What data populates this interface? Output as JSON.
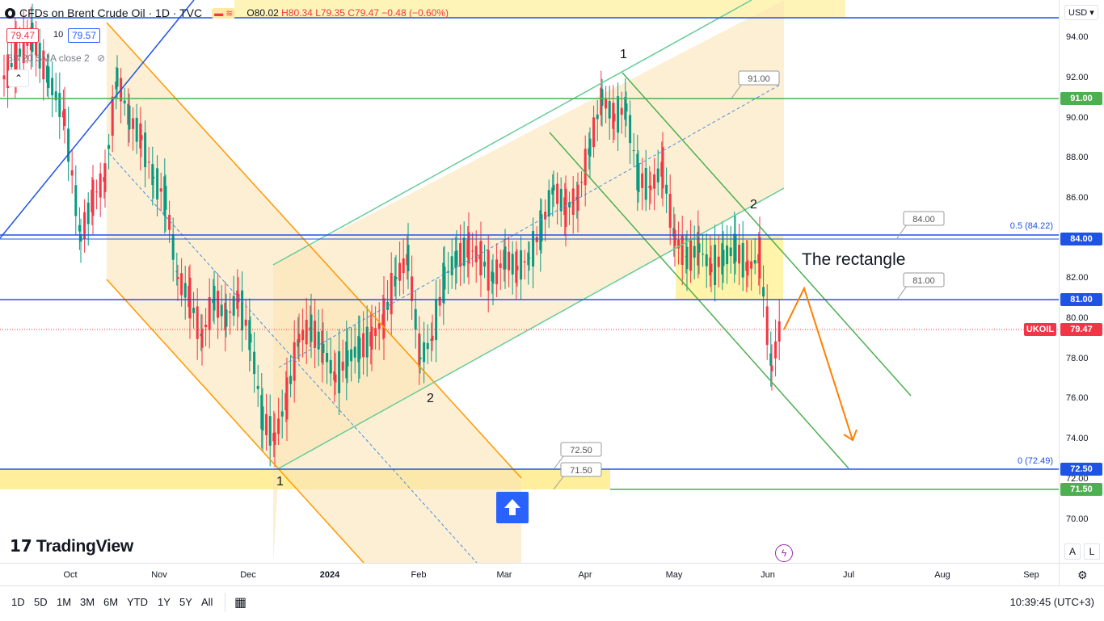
{
  "header": {
    "symbol_title": "CFDs on Brent Crude Oil · 1D · TVC",
    "ohlc": {
      "o": "O80.02",
      "h": "H80.34",
      "l": "L79.35",
      "c": "C79.47",
      "chg": "−0.48 (−0.60%)"
    },
    "sell_price": "79.47",
    "spread": "10",
    "buy_price": "79.57",
    "indicator_label": "BB 20 SMA close 2",
    "collapse_icon": "chevron-up-icon",
    "hide_icon": "eye-off-icon"
  },
  "currency": "USD",
  "price_axis": {
    "ticks": [
      "94.00",
      "92.00",
      "90.00",
      "88.00",
      "86.00",
      "84.00",
      "82.00",
      "80.00",
      "78.00",
      "76.00",
      "74.00",
      "72.00",
      "70.00"
    ],
    "labels": [
      {
        "text": "91.00",
        "color": "#4caf50"
      },
      {
        "text": "84.00",
        "color": "#1e53e5"
      },
      {
        "text": "81.00",
        "color": "#1e53e5"
      },
      {
        "text": "UKOIL",
        "color": "#f23645"
      },
      {
        "text": "79.47",
        "color": "#f23645"
      },
      {
        "text": "72.50",
        "color": "#1e53e5"
      },
      {
        "text": "71.50",
        "color": "#4caf50"
      }
    ]
  },
  "time_axis": {
    "labels": [
      "Oct",
      "Nov",
      "Dec",
      "2024",
      "Feb",
      "Mar",
      "Apr",
      "May",
      "Jun",
      "Jul",
      "Aug",
      "Sep"
    ]
  },
  "annotations": {
    "rectangle_text": "The rectangle",
    "fib_05": "0.5 (84.22)",
    "fib_0": "0 (72.49)",
    "callouts": [
      "91.00",
      "84.00",
      "81.00",
      "72.50",
      "71.50"
    ],
    "wave_labels": [
      "1",
      "2",
      "1",
      "2"
    ],
    "logo_text": "TradingView"
  },
  "bottom_bar": {
    "ranges": [
      "1D",
      "5D",
      "1M",
      "3M",
      "6M",
      "YTD",
      "1Y",
      "5Y",
      "All"
    ],
    "calendar_icon": "calendar-range-icon",
    "clock": "10:39:45 (UTC+3)",
    "percent_toggle": "%",
    "log_toggle": "L",
    "auto_toggle": "A",
    "settings_icon": "settings-icon"
  },
  "colors": {
    "up": "#089981",
    "down": "#f23645",
    "blue_line": "#1e53e5",
    "green_line": "#4caf50",
    "orange": "#ff9800",
    "channel_fill": "#fbe5b6",
    "yellow_zone": "#ffeb8a",
    "arrow_up_bg": "#2962ff"
  }
}
